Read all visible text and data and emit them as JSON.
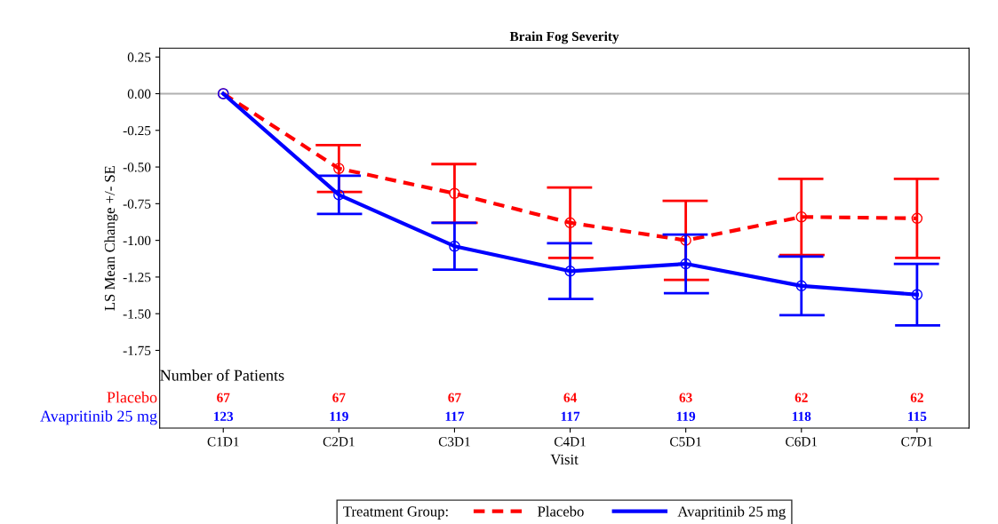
{
  "chart_data": {
    "type": "line",
    "title": "Brain Fog Severity",
    "xlabel": "Visit",
    "ylabel": "LS Mean Change +/- SE",
    "legend_title": "Treatment Group:",
    "categories": [
      "C1D1",
      "C2D1",
      "C3D1",
      "C4D1",
      "C5D1",
      "C6D1",
      "C7D1"
    ],
    "series": [
      {
        "name": "Placebo",
        "color": "#ff0000",
        "line_style": "dashed",
        "values": [
          0,
          -0.51,
          -0.68,
          -0.88,
          -1.0,
          -0.84,
          -0.85
        ],
        "errors": [
          null,
          0.16,
          0.2,
          0.24,
          0.27,
          0.26,
          0.27
        ]
      },
      {
        "name": "Avapritinib 25 mg",
        "color": "#0000ff",
        "line_style": "solid",
        "values": [
          0,
          -0.69,
          -1.04,
          -1.21,
          -1.16,
          -1.31,
          -1.37
        ],
        "errors": [
          null,
          0.13,
          0.16,
          0.19,
          0.2,
          0.2,
          0.21
        ]
      }
    ],
    "ylim": [
      -2.28,
      0.31
    ],
    "yticks": [
      {
        "value": 0.25,
        "label": "0.25"
      },
      {
        "value": 0,
        "label": "0.00"
      },
      {
        "value": -0.25,
        "label": "-0.25"
      },
      {
        "value": -0.5,
        "label": "-0.50"
      },
      {
        "value": -0.75,
        "label": "-0.75"
      },
      {
        "value": -1,
        "label": "-1.00"
      },
      {
        "value": -1.25,
        "label": "-1.25"
      },
      {
        "value": -1.5,
        "label": "-1.50"
      },
      {
        "value": -1.75,
        "label": "-1.75"
      }
    ],
    "ref_lines": [
      {
        "axis": "y",
        "value": 0,
        "color": "#b0b0b0"
      }
    ],
    "annotations": [
      "Number of Patients",
      "Placebo",
      "67",
      "67",
      "67",
      "64",
      "63",
      "62",
      "62",
      "Avapritinib 25 mg",
      "123",
      "119",
      "117",
      "117",
      "119",
      "118",
      "115"
    ],
    "marker": "circle",
    "grid": false,
    "legend": "bottom"
  }
}
